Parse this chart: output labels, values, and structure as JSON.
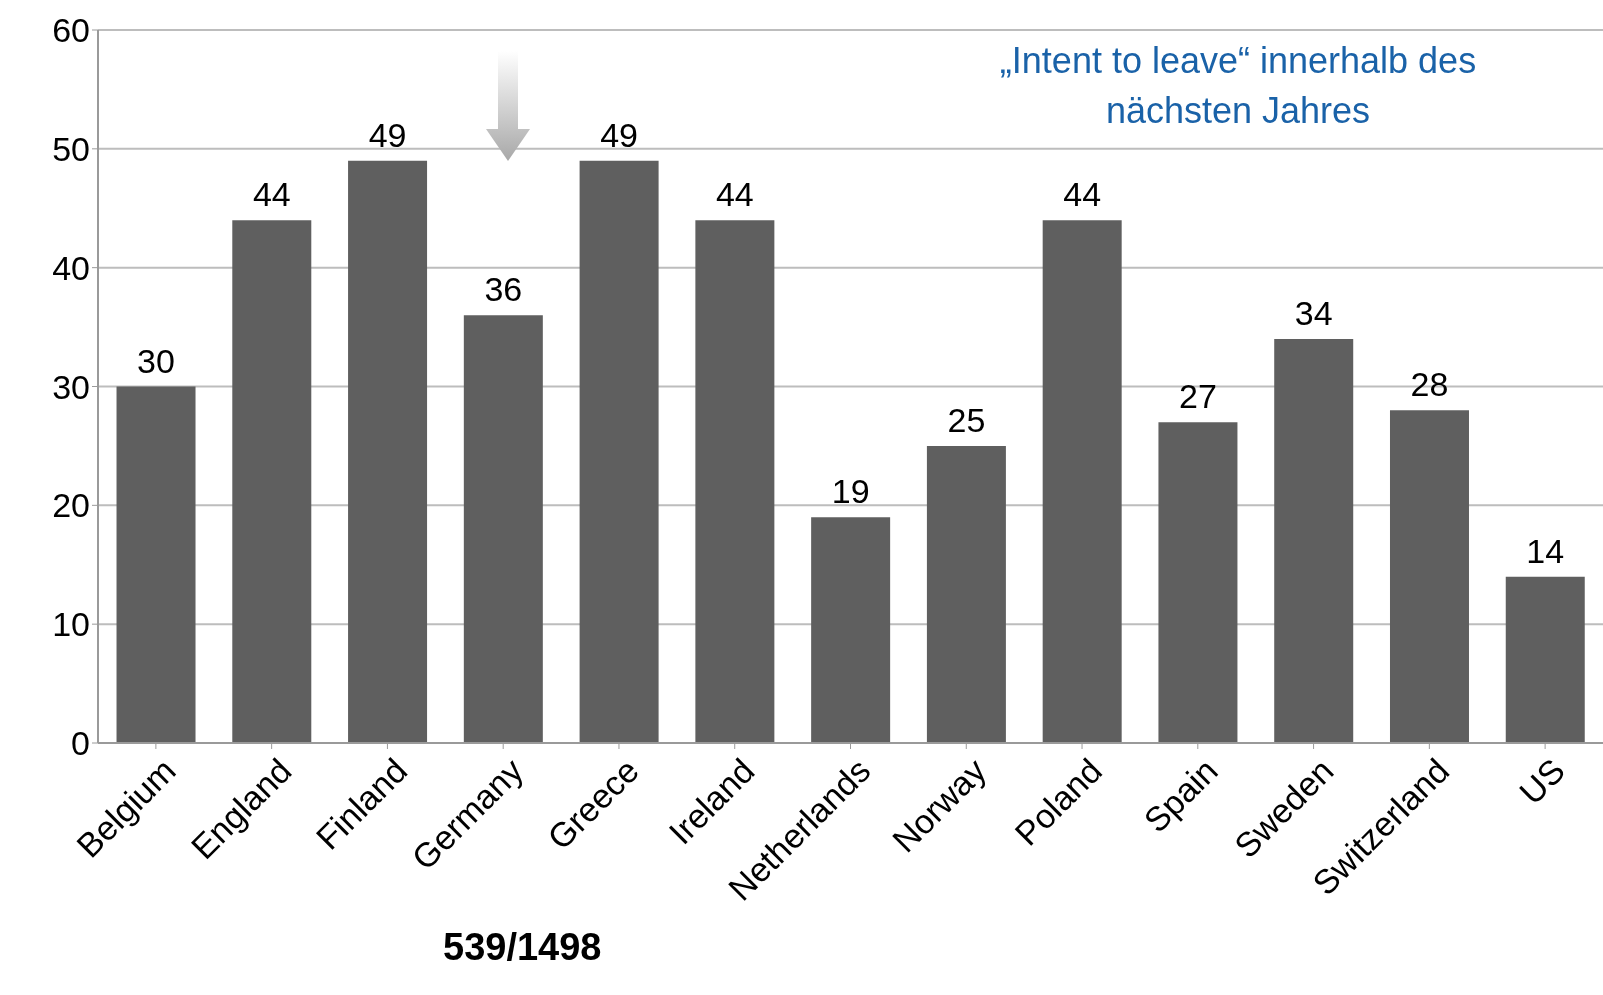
{
  "chart_data": {
    "type": "bar",
    "categories": [
      "Belgium",
      "England",
      "Finland",
      "Germany",
      "Greece",
      "Ireland",
      "Netherlands",
      "Norway",
      "Poland",
      "Spain",
      "Sweden",
      "Switzerland",
      "US"
    ],
    "values": [
      30,
      44,
      49,
      36,
      49,
      44,
      19,
      25,
      44,
      27,
      34,
      28,
      14
    ],
    "color": "#5f5f5f",
    "ylim": [
      0,
      60
    ],
    "yticks": [
      0,
      10,
      20,
      30,
      40,
      50,
      60
    ],
    "grid": "y",
    "data_labels": true,
    "annotations": [
      "„Intent to leave“ innerhalb des nächsten Jahres",
      "539/1498"
    ]
  }
}
